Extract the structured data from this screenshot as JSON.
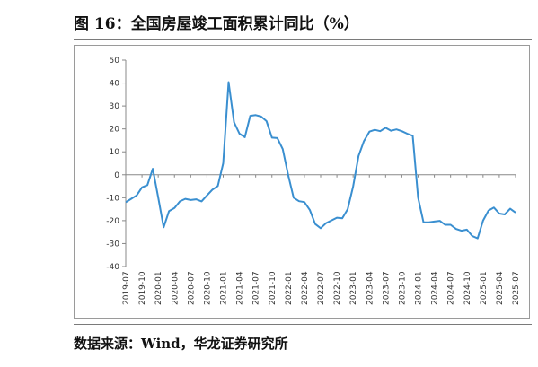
{
  "figure": {
    "title": "图 16：全国房屋竣工面积累计同比（%）",
    "source": "数据来源：Wind，华龙证券研究所"
  },
  "chart_data": {
    "type": "line",
    "title": "图 16：全国房屋竣工面积累计同比（%）",
    "xlabel": "",
    "ylabel": "",
    "ylim": [
      -40,
      50
    ],
    "yticks": [
      -40,
      -30,
      -20,
      -10,
      0,
      10,
      20,
      30,
      40,
      50
    ],
    "grid": false,
    "color": "#3a8fd0",
    "xtick_labels": [
      "2019-07",
      "2019-10",
      "2020-01",
      "2020-04",
      "2020-07",
      "2020-10",
      "2021-01",
      "2021-04",
      "2021-07",
      "2021-10",
      "2022-01",
      "2022-04",
      "2022-07",
      "2022-10",
      "2023-01",
      "2023-04",
      "2023-07",
      "2023-10",
      "2024-01",
      "2024-04",
      "2024-07",
      "2024-10",
      "2025-01",
      "2025-04",
      "2025-07"
    ],
    "series": [
      {
        "name": "",
        "x": [
          "2019-07",
          "2019-08",
          "2019-09",
          "2019-10",
          "2019-11",
          "2019-12",
          "2020-01",
          "2020-02",
          "2020-03",
          "2020-04",
          "2020-05",
          "2020-06",
          "2020-07",
          "2020-08",
          "2020-09",
          "2020-10",
          "2020-11",
          "2020-12",
          "2021-01",
          "2021-02",
          "2021-03",
          "2021-04",
          "2021-05",
          "2021-06",
          "2021-07",
          "2021-08",
          "2021-09",
          "2021-10",
          "2021-11",
          "2021-12",
          "2022-01",
          "2022-02",
          "2022-03",
          "2022-04",
          "2022-05",
          "2022-06",
          "2022-07",
          "2022-08",
          "2022-09",
          "2022-10",
          "2022-11",
          "2022-12",
          "2023-01",
          "2023-02",
          "2023-03",
          "2023-04",
          "2023-05",
          "2023-06",
          "2023-07",
          "2023-08",
          "2023-09",
          "2023-10",
          "2023-11",
          "2023-12",
          "2024-01",
          "2024-02",
          "2024-03",
          "2024-04",
          "2024-05",
          "2024-06",
          "2024-07",
          "2024-08",
          "2024-09",
          "2024-10",
          "2024-11",
          "2024-12",
          "2025-01",
          "2025-02",
          "2025-03",
          "2025-04",
          "2025-05",
          "2025-06",
          "2025-07"
        ],
        "values": [
          -12,
          -10.5,
          -9,
          -5.5,
          -4.5,
          2.6,
          -10,
          -22.9,
          -15.8,
          -14.5,
          -11.6,
          -10.5,
          -11,
          -10.7,
          -11.6,
          -9,
          -6.5,
          -4.9,
          5,
          40.4,
          22.9,
          17.9,
          16.4,
          25.7,
          26,
          25.4,
          23.4,
          16.2,
          16,
          11.2,
          0,
          -10,
          -11.5,
          -11.9,
          -15.3,
          -21.5,
          -23.3,
          -21.1,
          -19.9,
          -18.7,
          -19,
          -15,
          -5,
          8.2,
          14.7,
          18.8,
          19.6,
          19,
          20.5,
          19.2,
          19.8,
          19,
          17.9,
          17,
          -10,
          -20.7,
          -20.7,
          -20.4,
          -20.1,
          -21.8,
          -21.8,
          -23.6,
          -24.4,
          -23.9,
          -26.7,
          -27.7,
          -20,
          -15.6,
          -14.3,
          -16.9,
          -17.3,
          -14.8,
          -16.5
        ]
      }
    ]
  }
}
